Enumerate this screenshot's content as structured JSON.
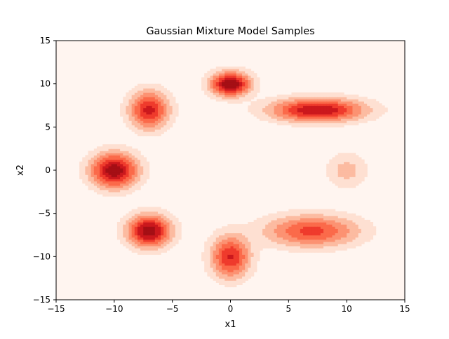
{
  "chart_data": {
    "type": "heatmap",
    "subtype": "filled-contour",
    "title": "Gaussian Mixture Model Samples",
    "xlabel": "x1",
    "ylabel": "x2",
    "xlim": [
      -15,
      15
    ],
    "ylim": [
      -15,
      15
    ],
    "xticks": [
      "−15",
      "−10",
      "−5",
      "0",
      "5",
      "10",
      "15"
    ],
    "yticks": [
      "−15",
      "−10",
      "−5",
      "0",
      "5",
      "10",
      "15"
    ],
    "xtick_values": [
      -15,
      -10,
      -5,
      0,
      5,
      10,
      15
    ],
    "ytick_values": [
      -15,
      -10,
      -5,
      0,
      5,
      10,
      15
    ],
    "grid": false,
    "colormap": "Reds",
    "contour_level_colors": [
      "#fff5f0",
      "#fee0d2",
      "#fcbba1",
      "#fc9272",
      "#fb6a4a",
      "#ef3b2c",
      "#cb181d",
      "#a50f15"
    ],
    "components": [
      {
        "mean": [
          0,
          10
        ],
        "sx": 1.1,
        "sy": 0.9,
        "weight": 1.0
      },
      {
        "mean": [
          -10,
          0
        ],
        "sx": 1.3,
        "sy": 1.3,
        "weight": 0.95
      },
      {
        "mean": [
          -7,
          -7
        ],
        "sx": 1.2,
        "sy": 1.2,
        "weight": 0.95
      },
      {
        "mean": [
          -7,
          7
        ],
        "sx": 1.1,
        "sy": 1.4,
        "weight": 0.75
      },
      {
        "mean": [
          7.5,
          7
        ],
        "sx": 2.6,
        "sy": 0.9,
        "weight": 0.85
      },
      {
        "mean": [
          7,
          -7
        ],
        "sx": 2.6,
        "sy": 1.2,
        "weight": 0.6
      },
      {
        "mean": [
          0,
          -10
        ],
        "sx": 1.1,
        "sy": 1.6,
        "weight": 0.7
      },
      {
        "mean": [
          10,
          0
        ],
        "sx": 1.1,
        "sy": 1.3,
        "weight": 0.22
      }
    ]
  }
}
